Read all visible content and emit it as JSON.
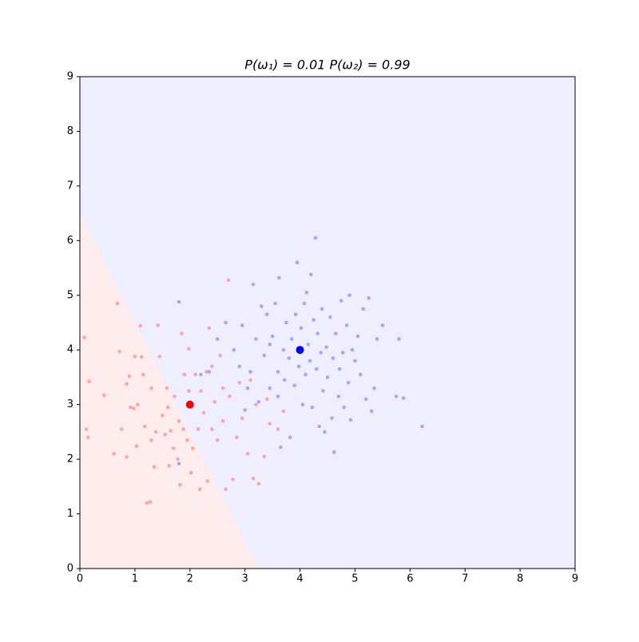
{
  "chart_data": {
    "type": "scatter",
    "title": "P(ω₁) = 0.01   P(ω₂) = 0.99",
    "xlim": [
      0,
      9
    ],
    "ylim": [
      0,
      9
    ],
    "xticks": [
      0,
      1,
      2,
      3,
      4,
      5,
      6,
      7,
      8,
      9
    ],
    "yticks": [
      0,
      1,
      2,
      3,
      4,
      5,
      6,
      7,
      8,
      9
    ],
    "decision_boundary": {
      "x": [
        0,
        3.25
      ],
      "y": [
        6.5,
        0
      ]
    },
    "region_colors": [
      "#ffecec",
      "#eeeeff"
    ],
    "means": {
      "x": [
        2,
        4
      ],
      "y": [
        3,
        4
      ],
      "colors": [
        "#ff0000",
        "#0000ff"
      ]
    },
    "series": [
      {
        "color": "#ff7777",
        "x": [
          0.08,
          0.12,
          0.15,
          0.17,
          0.44,
          0.62,
          0.68,
          0.72,
          0.76,
          0.85,
          0.85,
          0.9,
          0.92,
          0.98,
          1.0,
          1.03,
          1.05,
          1.1,
          1.12,
          1.15,
          1.18,
          1.22,
          1.28,
          1.3,
          1.35,
          1.38,
          1.42,
          1.45,
          1.5,
          1.55,
          1.58,
          1.62,
          1.65,
          1.7,
          1.72,
          1.78,
          1.8,
          1.82,
          1.85,
          1.88,
          1.9,
          1.95,
          1.98,
          2.02,
          2.05,
          2.1,
          2.15,
          2.18,
          2.2,
          2.25,
          2.3,
          2.32,
          2.35,
          2.4,
          2.45,
          2.5,
          2.55,
          2.6,
          2.65,
          2.7,
          2.72,
          2.78,
          2.85,
          2.9,
          2.95,
          3.05,
          3.1,
          3.15,
          3.2,
          3.25,
          3.35,
          3.4,
          3.45,
          3.6,
          3.7,
          2.6,
          2.4,
          1.98,
          1.6,
          1.3
        ],
        "y": [
          4.23,
          2.55,
          2.4,
          3.42,
          3.17,
          2.1,
          4.85,
          3.97,
          2.55,
          2.04,
          3.38,
          3.52,
          2.95,
          2.93,
          3.88,
          2.24,
          3.0,
          4.44,
          3.87,
          3.55,
          2.6,
          1.2,
          1.22,
          3.3,
          1.86,
          2.5,
          4.45,
          3.88,
          2.8,
          2.45,
          3.3,
          1.88,
          2.52,
          2.2,
          3.15,
          2.0,
          2.7,
          1.53,
          4.3,
          2.55,
          3.55,
          2.35,
          4.02,
          1.75,
          2.2,
          3.55,
          2.55,
          1.45,
          3.25,
          2.85,
          3.6,
          1.6,
          4.4,
          2.55,
          3.05,
          2.35,
          3.9,
          2.7,
          1.45,
          5.28,
          3.15,
          1.63,
          2.4,
          3.4,
          2.75,
          2.1,
          3.45,
          1.65,
          3.0,
          1.55,
          2.05,
          3.1,
          2.65,
          2.55,
          2.88,
          3.3,
          3.7,
          3.25,
          2.95,
          2.35
        ]
      },
      {
        "color": "#7777ff",
        "x": [
          1.8,
          1.8,
          2.2,
          2.35,
          2.5,
          2.65,
          2.8,
          2.9,
          2.95,
          3.0,
          3.05,
          3.1,
          3.15,
          3.2,
          3.25,
          3.3,
          3.35,
          3.4,
          3.45,
          3.5,
          3.55,
          3.6,
          3.62,
          3.65,
          3.7,
          3.72,
          3.75,
          3.8,
          3.82,
          3.85,
          3.9,
          3.92,
          3.95,
          3.98,
          4.02,
          4.05,
          4.08,
          4.1,
          4.12,
          4.15,
          4.18,
          4.2,
          4.22,
          4.25,
          4.28,
          4.3,
          4.32,
          4.35,
          4.38,
          4.4,
          4.42,
          4.45,
          4.48,
          4.5,
          4.55,
          4.58,
          4.6,
          4.62,
          4.65,
          4.7,
          4.72,
          4.75,
          4.78,
          4.8,
          4.85,
          4.88,
          4.9,
          4.92,
          4.95,
          5.0,
          5.05,
          5.1,
          5.15,
          5.2,
          5.25,
          5.3,
          5.35,
          5.4,
          5.5,
          5.75,
          5.8,
          5.88,
          6.22,
          3.45,
          3.6
        ],
        "y": [
          4.88,
          1.92,
          3.55,
          3.6,
          4.2,
          4.5,
          4.0,
          3.7,
          4.45,
          2.9,
          3.3,
          3.6,
          5.2,
          4.2,
          3.05,
          4.8,
          3.9,
          4.65,
          3.3,
          4.25,
          4.85,
          3.6,
          5.32,
          2.22,
          4.0,
          3.45,
          4.5,
          3.85,
          2.4,
          4.2,
          3.35,
          4.65,
          5.6,
          3.7,
          4.4,
          3.0,
          4.85,
          3.55,
          5.05,
          4.1,
          3.8,
          5.38,
          2.95,
          4.55,
          6.05,
          3.65,
          4.3,
          2.6,
          3.95,
          4.75,
          3.25,
          2.5,
          4.05,
          3.5,
          4.6,
          2.75,
          3.85,
          2.13,
          4.3,
          3.15,
          3.65,
          4.9,
          3.95,
          2.95,
          4.45,
          3.4,
          5.0,
          2.72,
          4.0,
          3.8,
          4.25,
          3.55,
          4.75,
          3.1,
          4.95,
          2.88,
          3.3,
          4.2,
          4.45,
          3.15,
          4.2,
          3.12,
          2.6,
          4.1,
          3.15
        ]
      }
    ]
  }
}
